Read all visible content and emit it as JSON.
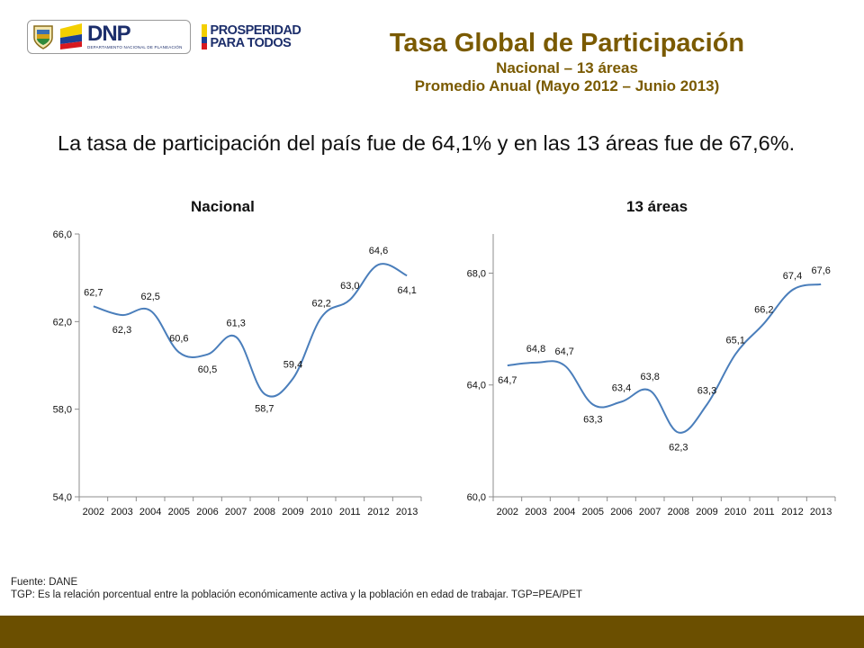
{
  "header": {
    "title": "Tasa Global de Participación",
    "subtitle_1": "Nacional – 13 áreas",
    "subtitle_2": "Promedio Anual (Mayo 2012 – Junio 2013)"
  },
  "logos": {
    "dnp_name": "DNP",
    "dnp_sub": "DEPARTAMENTO NACIONAL DE PLANEACIÓN",
    "prosperidad_line1": "PROSPERIDAD",
    "prosperidad_line2": "PARA TODOS",
    "colors": {
      "yellow": "#f3cf00",
      "blue": "#1c3f94",
      "red": "#d71920",
      "navy": "#1c2e6b"
    }
  },
  "lead_text": "La tasa de participación del país fue de 64,1% y en las 13 áreas fue de 67,6%.",
  "chart_data": [
    {
      "type": "line",
      "title": "Nacional",
      "x": [
        "2002",
        "2003",
        "2004",
        "2005",
        "2006",
        "2007",
        "2008",
        "2009",
        "2010",
        "2011",
        "2012",
        "2013"
      ],
      "values": [
        62.7,
        62.3,
        62.5,
        60.6,
        60.5,
        61.3,
        58.7,
        59.4,
        62.2,
        63.0,
        64.6,
        64.1
      ],
      "data_labels": [
        "62,7",
        "62,3",
        "62,5",
        "60,6",
        "60,5",
        "61,3",
        "58,7",
        "59,4",
        "62,2",
        "63,0",
        "64,6",
        "64,1"
      ],
      "yticks": [
        54,
        58,
        62,
        66
      ],
      "ytick_labels": [
        "54,0",
        "58,0",
        "62,0",
        "66,0"
      ],
      "ylim": [
        54,
        66
      ],
      "grid": false,
      "line_color": "#4a7ebb"
    },
    {
      "type": "line",
      "title": "13 áreas",
      "x": [
        "2002",
        "2003",
        "2004",
        "2005",
        "2006",
        "2007",
        "2008",
        "2009",
        "2010",
        "2011",
        "2012",
        "2013"
      ],
      "values": [
        64.7,
        64.8,
        64.7,
        63.3,
        63.4,
        63.8,
        62.3,
        63.3,
        65.1,
        66.2,
        67.4,
        67.6
      ],
      "data_labels": [
        "64,7",
        "64,8",
        "64,7",
        "63,3",
        "63,4",
        "63,8",
        "62,3",
        "63,3",
        "65,1",
        "66,2",
        "67,4",
        "67,6"
      ],
      "yticks": [
        60,
        64,
        68
      ],
      "ytick_labels": [
        "60,0",
        "64,0",
        "68,0"
      ],
      "ylim": [
        60,
        69.4
      ],
      "grid": false,
      "line_color": "#4a7ebb"
    }
  ],
  "footer": {
    "source": "Fuente: DANE",
    "note": "TGP: Es la relación porcentual entre la población económicamente activa y la población en edad de trabajar. TGP=PEA/PET"
  }
}
